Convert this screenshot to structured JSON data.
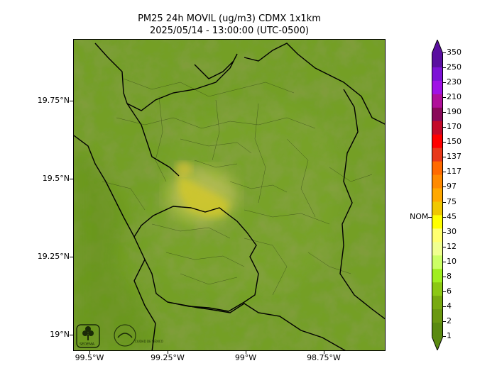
{
  "title": {
    "line1": "PM25 24h MOVIL (ug/m3) CDMX 1x1km",
    "line2": "2025/05/14 - 13:00:00 (UTC-0500)"
  },
  "axes": {
    "y_ticks": [
      "19.75°N",
      "19.5°N",
      "19.25°N",
      "19°N"
    ],
    "x_ticks": [
      "99.5°W",
      "99.25°W",
      "99°W",
      "98.75°W"
    ]
  },
  "colorbar": {
    "labels": [
      "350",
      "250",
      "230",
      "210",
      "190",
      "170",
      "150",
      "137",
      "117",
      "97",
      "75",
      "45",
      "30",
      "12",
      "10",
      "8",
      "6",
      "4",
      "2",
      "1"
    ],
    "colors_top_to_bottom": [
      "#5a0fa0",
      "#7d12d6",
      "#a012e6",
      "#b0109a",
      "#8a0a5a",
      "#c40a2a",
      "#ff0000",
      "#e8381a",
      "#ff6a00",
      "#ff8a00",
      "#ffa800",
      "#f0c800",
      "#ffff00",
      "#ffff70",
      "#f0ff90",
      "#ccff66",
      "#a0ee20",
      "#8cc814",
      "#78aa10",
      "#6a9810",
      "#5a8a10"
    ],
    "reference_label": "NOM"
  },
  "logos": {
    "left": "SEDEMA",
    "right": "CIUDAD DE MÉXICO"
  }
}
